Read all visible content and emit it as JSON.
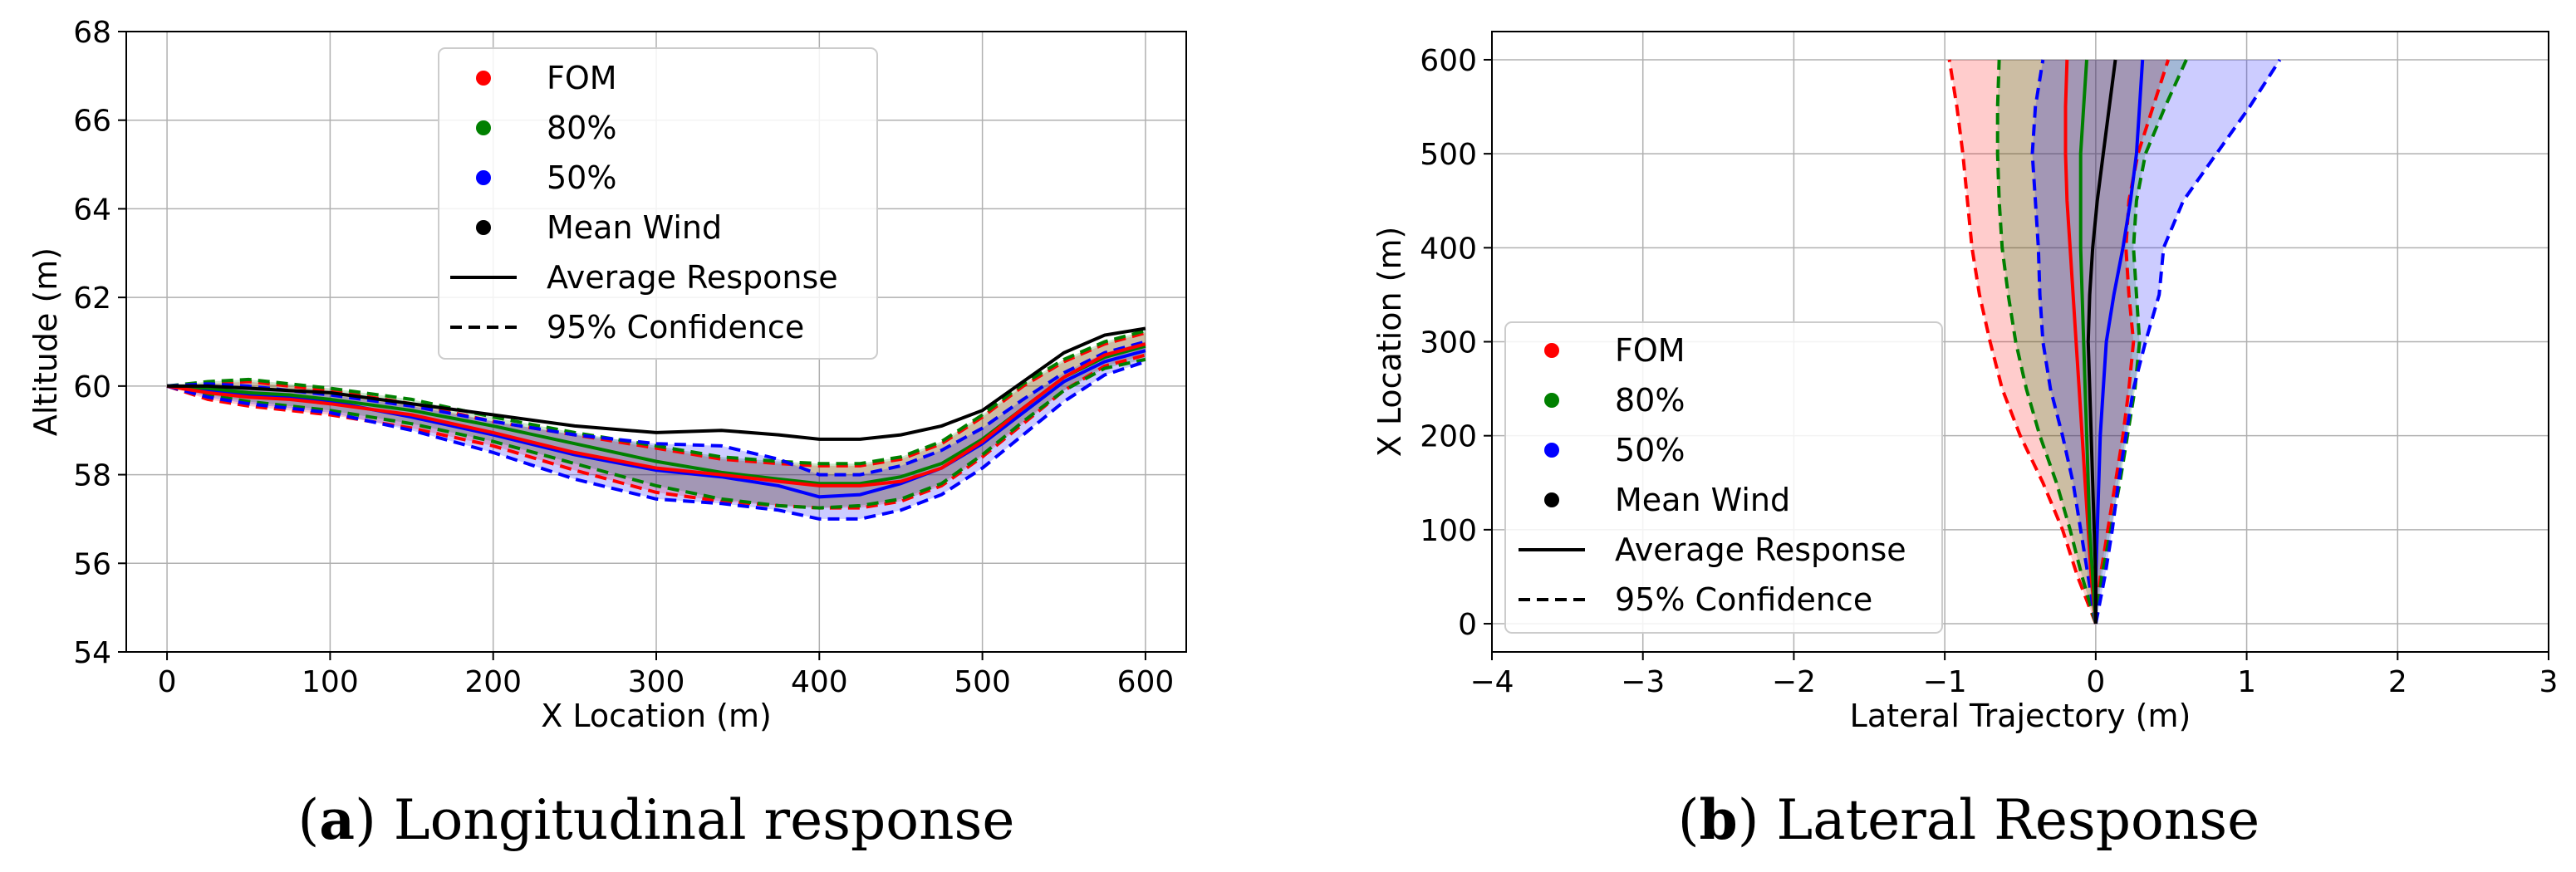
{
  "colors": {
    "fom": "#ff0000",
    "p80": "#008000",
    "p50": "#0000ff",
    "mean": "#000000",
    "grid": "#b0b0b0"
  },
  "chart_data": [
    {
      "id": "a",
      "type": "line",
      "caption_letter": "a",
      "caption_text": " Longitudinal response",
      "xlabel": "X Location (m)",
      "ylabel": "Altitude (m)",
      "xlim": [
        -25,
        625
      ],
      "ylim": [
        54,
        68
      ],
      "xticks": [
        0,
        100,
        200,
        300,
        400,
        500,
        600
      ],
      "yticks": [
        54,
        56,
        58,
        60,
        62,
        64,
        66,
        68
      ],
      "grid": true,
      "legend_position": "top-center",
      "legend": [
        {
          "label": "FOM",
          "kind": "dot",
          "color": "#ff0000"
        },
        {
          "label": "80%",
          "kind": "dot",
          "color": "#008000"
        },
        {
          "label": "50%",
          "kind": "dot",
          "color": "#0000ff"
        },
        {
          "label": "Mean Wind",
          "kind": "dot",
          "color": "#000000"
        },
        {
          "label": "Average Response",
          "kind": "line",
          "color": "#000000"
        },
        {
          "label": "95% Confidence",
          "kind": "dash",
          "color": "#000000"
        }
      ],
      "x": [
        0,
        25,
        50,
        75,
        100,
        150,
        200,
        250,
        300,
        340,
        375,
        400,
        425,
        450,
        475,
        500,
        525,
        550,
        575,
        600
      ],
      "series": [
        {
          "name": "Mean Wind",
          "color": "#000000",
          "mean": [
            60.0,
            60.0,
            59.95,
            59.9,
            59.85,
            59.6,
            59.35,
            59.1,
            58.95,
            59.0,
            58.9,
            58.8,
            58.8,
            58.9,
            59.1,
            59.45,
            60.1,
            60.75,
            61.15,
            61.3
          ]
        },
        {
          "name": "FOM",
          "color": "#ff0000",
          "mean": [
            60.0,
            59.85,
            59.75,
            59.7,
            59.6,
            59.35,
            58.95,
            58.5,
            58.15,
            58.0,
            57.85,
            57.75,
            57.75,
            57.85,
            58.15,
            58.75,
            59.5,
            60.2,
            60.7,
            60.95
          ],
          "upper": [
            60.0,
            60.05,
            60.1,
            60.0,
            59.9,
            59.6,
            59.2,
            58.9,
            58.6,
            58.35,
            58.25,
            58.2,
            58.2,
            58.35,
            58.7,
            59.3,
            60.0,
            60.55,
            60.95,
            61.2
          ],
          "lower": [
            60.0,
            59.7,
            59.55,
            59.45,
            59.35,
            59.05,
            58.65,
            58.1,
            57.6,
            57.4,
            57.3,
            57.25,
            57.25,
            57.4,
            57.75,
            58.4,
            59.15,
            59.9,
            60.45,
            60.7
          ]
        },
        {
          "name": "80%",
          "color": "#008000",
          "mean": [
            60.0,
            59.95,
            59.85,
            59.8,
            59.7,
            59.45,
            59.1,
            58.7,
            58.3,
            58.05,
            57.9,
            57.8,
            57.8,
            57.95,
            58.25,
            58.8,
            59.5,
            60.2,
            60.65,
            60.9
          ],
          "upper": [
            60.0,
            60.1,
            60.15,
            60.05,
            59.95,
            59.7,
            59.3,
            58.95,
            58.65,
            58.4,
            58.3,
            58.25,
            58.25,
            58.4,
            58.75,
            59.35,
            60.05,
            60.6,
            61.0,
            61.25
          ],
          "lower": [
            60.0,
            59.8,
            59.65,
            59.55,
            59.45,
            59.15,
            58.75,
            58.25,
            57.75,
            57.45,
            57.3,
            57.25,
            57.3,
            57.45,
            57.8,
            58.45,
            59.2,
            59.9,
            60.4,
            60.6
          ]
        },
        {
          "name": "50%",
          "color": "#0000ff",
          "mean": [
            60.0,
            59.9,
            59.8,
            59.75,
            59.65,
            59.3,
            58.9,
            58.45,
            58.1,
            57.95,
            57.75,
            57.5,
            57.55,
            57.8,
            58.15,
            58.7,
            59.4,
            60.1,
            60.55,
            60.8
          ],
          "upper": [
            60.0,
            60.05,
            60.0,
            59.9,
            59.8,
            59.55,
            59.2,
            58.9,
            58.7,
            58.65,
            58.35,
            58.0,
            58.0,
            58.2,
            58.55,
            59.05,
            59.7,
            60.3,
            60.75,
            61.0
          ],
          "lower": [
            60.0,
            59.75,
            59.6,
            59.5,
            59.4,
            59.0,
            58.5,
            57.9,
            57.45,
            57.35,
            57.2,
            57.0,
            57.0,
            57.2,
            57.55,
            58.15,
            58.9,
            59.65,
            60.25,
            60.55
          ]
        }
      ]
    },
    {
      "id": "b",
      "type": "line",
      "caption_letter": "b",
      "caption_text": " Lateral Response",
      "xlabel": "Lateral Trajectory (m)",
      "ylabel": "X Location (m)",
      "xlim": [
        -4,
        3
      ],
      "ylim": [
        -30,
        630
      ],
      "xticks": [
        -4,
        -3,
        -2,
        -1,
        0,
        1,
        2,
        3
      ],
      "xtick_labels": [
        "−4",
        "−3",
        "−2",
        "−1",
        "0",
        "1",
        "2",
        "3"
      ],
      "yticks": [
        0,
        100,
        200,
        300,
        400,
        500,
        600
      ],
      "grid": true,
      "legend_position": "lower-left",
      "legend": [
        {
          "label": "FOM",
          "kind": "dot",
          "color": "#ff0000"
        },
        {
          "label": "80%",
          "kind": "dot",
          "color": "#008000"
        },
        {
          "label": "50%",
          "kind": "dot",
          "color": "#0000ff"
        },
        {
          "label": "Mean Wind",
          "kind": "dot",
          "color": "#000000"
        },
        {
          "label": "Average Response",
          "kind": "line",
          "color": "#000000"
        },
        {
          "label": "95% Confidence",
          "kind": "dash",
          "color": "#000000"
        }
      ],
      "y": [
        0,
        50,
        100,
        150,
        200,
        250,
        300,
        350,
        400,
        450,
        500,
        550,
        600
      ],
      "series": [
        {
          "name": "Mean Wind",
          "color": "#000000",
          "mean": [
            0.0,
            0.0,
            -0.01,
            -0.02,
            -0.03,
            -0.04,
            -0.05,
            -0.04,
            -0.02,
            0.01,
            0.05,
            0.09,
            0.13
          ]
        },
        {
          "name": "FOM",
          "color": "#ff0000",
          "mean": [
            0.0,
            -0.03,
            -0.05,
            -0.07,
            -0.09,
            -0.11,
            -0.13,
            -0.15,
            -0.17,
            -0.19,
            -0.2,
            -0.2,
            -0.19
          ],
          "upper": [
            0.0,
            0.03,
            0.08,
            0.13,
            0.18,
            0.22,
            0.25,
            0.22,
            0.2,
            0.22,
            0.28,
            0.38,
            0.48
          ],
          "lower": [
            0.0,
            -0.12,
            -0.22,
            -0.35,
            -0.5,
            -0.62,
            -0.7,
            -0.77,
            -0.82,
            -0.85,
            -0.88,
            -0.92,
            -0.97
          ]
        },
        {
          "name": "80%",
          "color": "#008000",
          "mean": [
            0.0,
            -0.02,
            -0.04,
            -0.05,
            -0.06,
            -0.07,
            -0.08,
            -0.09,
            -0.1,
            -0.1,
            -0.1,
            -0.08,
            -0.06
          ],
          "upper": [
            0.0,
            0.04,
            0.1,
            0.16,
            0.21,
            0.26,
            0.29,
            0.27,
            0.25,
            0.27,
            0.33,
            0.46,
            0.6
          ],
          "lower": [
            0.0,
            -0.09,
            -0.17,
            -0.26,
            -0.37,
            -0.46,
            -0.53,
            -0.58,
            -0.62,
            -0.64,
            -0.65,
            -0.65,
            -0.64
          ]
        },
        {
          "name": "50%",
          "color": "#0000ff",
          "mean": [
            0.0,
            0.0,
            0.01,
            0.02,
            0.03,
            0.05,
            0.07,
            0.12,
            0.18,
            0.23,
            0.27,
            0.29,
            0.31
          ],
          "upper": [
            0.0,
            0.06,
            0.11,
            0.15,
            0.2,
            0.25,
            0.33,
            0.42,
            0.45,
            0.58,
            0.8,
            1.02,
            1.22
          ],
          "lower": [
            0.0,
            -0.05,
            -0.1,
            -0.15,
            -0.22,
            -0.3,
            -0.35,
            -0.37,
            -0.38,
            -0.4,
            -0.42,
            -0.4,
            -0.35
          ]
        }
      ]
    }
  ]
}
